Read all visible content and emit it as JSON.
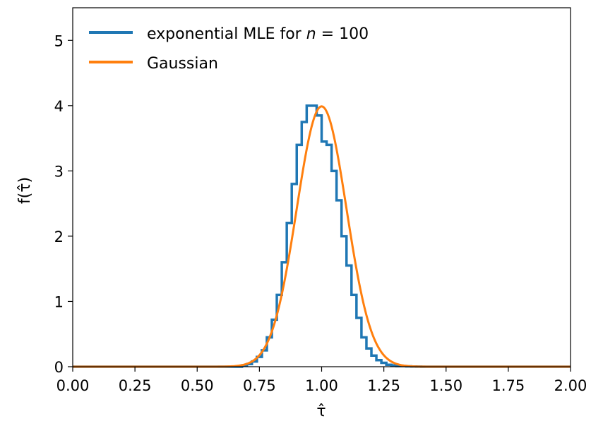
{
  "chart_data": {
    "type": "line",
    "xlabel": "τ̂",
    "ylabel": "f(τ̂)",
    "xlim": [
      0,
      2
    ],
    "ylim": [
      0,
      5.5
    ],
    "xticks": [
      0,
      0.25,
      0.5,
      0.75,
      1.0,
      1.25,
      1.5,
      1.75,
      2.0
    ],
    "xtick_labels": [
      "0.00",
      "0.25",
      "0.50",
      "0.75",
      "1.00",
      "1.25",
      "1.50",
      "1.75",
      "2.00"
    ],
    "yticks": [
      0,
      1,
      2,
      3,
      4,
      5
    ],
    "ytick_labels": [
      "0",
      "1",
      "2",
      "3",
      "4",
      "5"
    ],
    "grid": false,
    "legend_position": "top-left",
    "series": [
      {
        "name": "exponential MLE for n = 100",
        "legend_parts": [
          "exponential MLE for ",
          "n",
          " = 100"
        ],
        "style": "step",
        "color": "#1f77b4",
        "bin_edges": [
          0.0,
          0.68,
          0.7,
          0.72,
          0.74,
          0.76,
          0.78,
          0.8,
          0.82,
          0.84,
          0.86,
          0.88,
          0.9,
          0.92,
          0.94,
          0.96,
          0.98,
          1.0,
          1.02,
          1.04,
          1.06,
          1.08,
          1.1,
          1.12,
          1.14,
          1.16,
          1.18,
          1.2,
          1.22,
          1.24,
          1.26,
          1.28,
          1.3,
          1.32,
          1.34,
          1.36,
          1.38,
          1.4,
          2.0
        ],
        "values": [
          0,
          0.02,
          0.04,
          0.08,
          0.15,
          0.25,
          0.45,
          0.72,
          1.1,
          1.6,
          2.2,
          2.8,
          3.4,
          3.75,
          4.0,
          4.0,
          3.85,
          3.45,
          3.4,
          3.0,
          2.55,
          2.0,
          1.55,
          1.1,
          0.75,
          0.45,
          0.28,
          0.17,
          0.1,
          0.06,
          0.03,
          0.02,
          0.01,
          0.01,
          0.005,
          0.003,
          0.002,
          0
        ]
      },
      {
        "name": "Gaussian",
        "style": "line",
        "color": "#ff7f0e",
        "mean": 1.0,
        "std": 0.1
      }
    ]
  }
}
